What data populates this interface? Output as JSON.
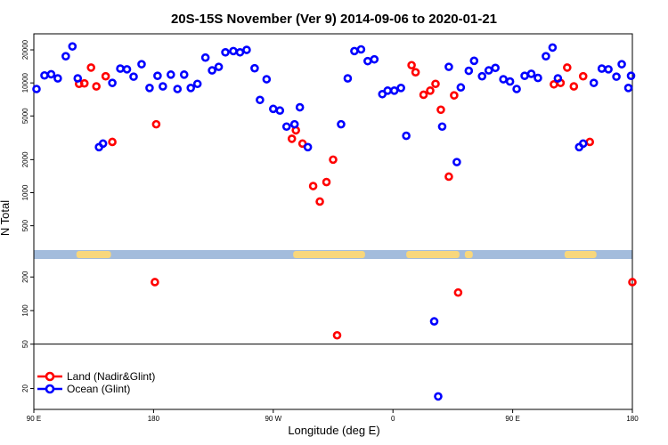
{
  "chart_data": {
    "type": "scatter",
    "title": "20S-15S November (Ver 9)   2014-09-06 to 2020-01-21",
    "xlabel": "Longitude (deg E)",
    "ylabel": "N Total",
    "x_ticks": [
      {
        "value": 90,
        "label": "90 E"
      },
      {
        "value": 180,
        "label": "180"
      },
      {
        "value": 270,
        "label": "90 W"
      },
      {
        "value": 360,
        "label": "0"
      },
      {
        "value": 450,
        "label": "90 E"
      },
      {
        "value": 540,
        "label": "180"
      }
    ],
    "xlim": [
      90,
      540
    ],
    "upper_panel": {
      "scale": "log",
      "ylim": [
        300,
        28000
      ],
      "yticks": [
        500,
        1000,
        2000,
        5000,
        10000,
        20000
      ]
    },
    "lower_panel": {
      "scale": "log",
      "ylim": [
        13,
        290
      ],
      "yticks": [
        20,
        50,
        100,
        200
      ]
    },
    "reference_line": 50,
    "land_bands": [
      [
        122,
        148
      ],
      [
        285,
        339
      ],
      [
        370,
        410
      ],
      [
        414,
        420
      ],
      [
        489,
        513
      ]
    ],
    "colors": {
      "land": "#ff0000",
      "ocean": "#0000ff",
      "ocean_band": "#a3bcdc",
      "land_band": "#f8d77c"
    },
    "legend": {
      "position": "bottom-left",
      "entries": [
        {
          "label": "Land (Nadir&Glint)",
          "color": "#ff0000"
        },
        {
          "label": "Ocean (Glint)",
          "color": "#0000ff"
        }
      ]
    },
    "series": [
      {
        "name": "Land (Nadir&Glint)",
        "color": "#ff0000",
        "points": [
          [
            124,
            9800
          ],
          [
            128,
            9900
          ],
          [
            133,
            13800
          ],
          [
            137,
            9300
          ],
          [
            144,
            11500
          ],
          [
            149,
            2900
          ],
          [
            181,
            180
          ],
          [
            182,
            4200
          ],
          [
            284,
            3100
          ],
          [
            287,
            3700
          ],
          [
            292,
            2800
          ],
          [
            300,
            1150
          ],
          [
            305,
            830
          ],
          [
            310,
            1250
          ],
          [
            315,
            2000
          ],
          [
            318,
            60
          ],
          [
            374,
            14500
          ],
          [
            377,
            12500
          ],
          [
            383,
            7800
          ],
          [
            388,
            8500
          ],
          [
            392,
            9800
          ],
          [
            396,
            5700
          ],
          [
            402,
            1400
          ],
          [
            406,
            7700
          ],
          [
            409,
            145
          ],
          [
            481,
            9700
          ],
          [
            486,
            10000
          ],
          [
            491,
            13800
          ],
          [
            496,
            9300
          ],
          [
            503,
            11500
          ],
          [
            508,
            2900
          ],
          [
            540,
            180
          ]
        ]
      },
      {
        "name": "Ocean (Glint)",
        "color": "#0000ff",
        "points": [
          [
            92,
            8800
          ],
          [
            98,
            11700
          ],
          [
            103,
            12000
          ],
          [
            108,
            11000
          ],
          [
            114,
            17500
          ],
          [
            119,
            21500
          ],
          [
            123,
            11000
          ],
          [
            139,
            2600
          ],
          [
            142,
            2800
          ],
          [
            149,
            10000
          ],
          [
            155,
            13500
          ],
          [
            160,
            13300
          ],
          [
            165,
            11400
          ],
          [
            171,
            14800
          ],
          [
            177,
            9000
          ],
          [
            183,
            11600
          ],
          [
            187,
            9300
          ],
          [
            193,
            11900
          ],
          [
            198,
            8800
          ],
          [
            203,
            11900
          ],
          [
            208,
            9000
          ],
          [
            213,
            9800
          ],
          [
            219,
            17000
          ],
          [
            224,
            13000
          ],
          [
            229,
            14000
          ],
          [
            234,
            19000
          ],
          [
            240,
            19500
          ],
          [
            245,
            19000
          ],
          [
            250,
            20000
          ],
          [
            256,
            13600
          ],
          [
            260,
            7000
          ],
          [
            265,
            10800
          ],
          [
            270,
            5800
          ],
          [
            275,
            5600
          ],
          [
            280,
            4000
          ],
          [
            286,
            4200
          ],
          [
            290,
            6000
          ],
          [
            296,
            2600
          ],
          [
            321,
            4200
          ],
          [
            326,
            11000
          ],
          [
            331,
            19500
          ],
          [
            336,
            20200
          ],
          [
            341,
            15800
          ],
          [
            346,
            16400
          ],
          [
            352,
            7900
          ],
          [
            356,
            8500
          ],
          [
            361,
            8500
          ],
          [
            366,
            9000
          ],
          [
            370,
            3300
          ],
          [
            391,
            80
          ],
          [
            394,
            17
          ],
          [
            397,
            4000
          ],
          [
            402,
            14000
          ],
          [
            408,
            1900
          ],
          [
            411,
            9100
          ],
          [
            417,
            12900
          ],
          [
            421,
            15900
          ],
          [
            427,
            11500
          ],
          [
            432,
            13000
          ],
          [
            437,
            13700
          ],
          [
            443,
            10800
          ],
          [
            448,
            10300
          ],
          [
            453,
            8800
          ],
          [
            459,
            11600
          ],
          [
            464,
            12100
          ],
          [
            469,
            11100
          ],
          [
            475,
            17500
          ],
          [
            480,
            21000
          ],
          [
            484,
            11000
          ],
          [
            500,
            2600
          ],
          [
            503,
            2800
          ],
          [
            511,
            10000
          ],
          [
            517,
            13500
          ],
          [
            522,
            13300
          ],
          [
            528,
            11400
          ],
          [
            532,
            14800
          ],
          [
            537,
            9000
          ],
          [
            539,
            11600
          ]
        ]
      }
    ]
  }
}
